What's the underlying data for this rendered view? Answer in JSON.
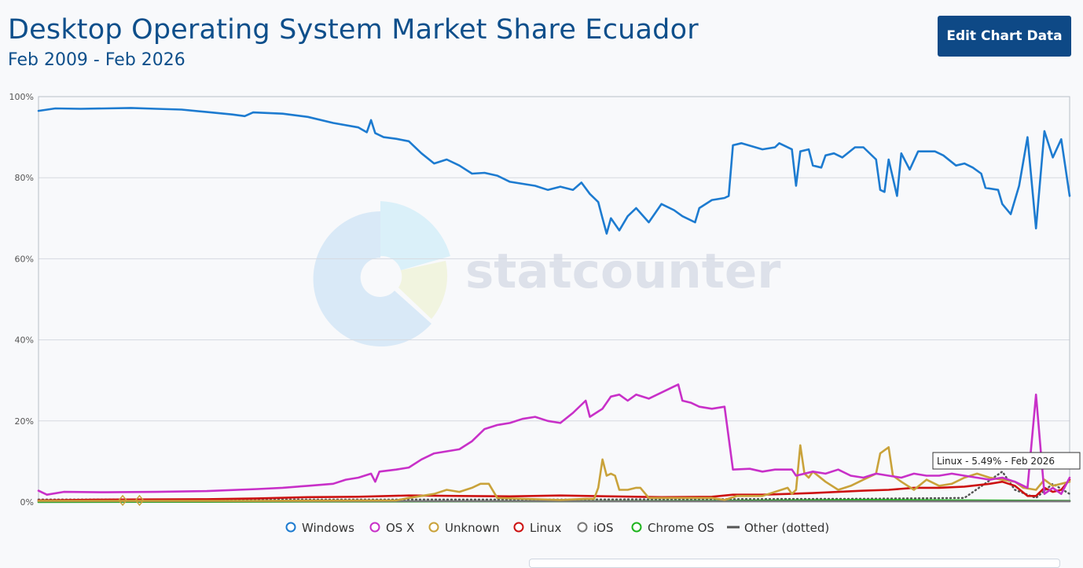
{
  "header": {
    "title": "Desktop Operating System Market Share Ecuador",
    "subtitle": "Feb 2009 - Feb 2026",
    "edit_button": "Edit Chart Data"
  },
  "watermark": {
    "text": "statcounter"
  },
  "tooltip": {
    "text": "Linux - 5.49% - Feb 2026"
  },
  "chart_data": {
    "type": "line",
    "title": "Desktop Operating System Market Share Ecuador",
    "subtitle": "Feb 2009 - Feb 2026",
    "xlabel": "",
    "ylabel": "",
    "x_start": "Feb 2009",
    "x_end": "Feb 2026",
    "ylim": [
      0,
      100
    ],
    "yticks": [
      "0%",
      "20%",
      "40%",
      "60%",
      "80%",
      "100%"
    ],
    "grid": true,
    "legend_position": "bottom",
    "series": [
      {
        "name": "Windows",
        "color": "#1d7bd0",
        "style": "solid",
        "points": [
          [
            "2009-02",
            96.5
          ],
          [
            "2009-06",
            97.1
          ],
          [
            "2009-12",
            97.0
          ],
          [
            "2010-06",
            97.1
          ],
          [
            "2010-12",
            97.2
          ],
          [
            "2011-06",
            97.0
          ],
          [
            "2011-12",
            96.8
          ],
          [
            "2012-06",
            96.2
          ],
          [
            "2012-12",
            95.6
          ],
          [
            "2013-03",
            95.2
          ],
          [
            "2013-05",
            96.1
          ],
          [
            "2013-12",
            95.8
          ],
          [
            "2014-06",
            95.0
          ],
          [
            "2014-12",
            93.5
          ],
          [
            "2015-06",
            92.4
          ],
          [
            "2015-08",
            91.2
          ],
          [
            "2015-09",
            94.2
          ],
          [
            "2015-10",
            91.0
          ],
          [
            "2015-12",
            90.0
          ],
          [
            "2016-03",
            89.6
          ],
          [
            "2016-06",
            89.0
          ],
          [
            "2016-09",
            86.0
          ],
          [
            "2016-12",
            83.5
          ],
          [
            "2017-03",
            84.5
          ],
          [
            "2017-06",
            83.0
          ],
          [
            "2017-09",
            81.0
          ],
          [
            "2017-12",
            81.2
          ],
          [
            "2018-03",
            80.5
          ],
          [
            "2018-06",
            79.0
          ],
          [
            "2018-12",
            78.0
          ],
          [
            "2019-03",
            77.0
          ],
          [
            "2019-06",
            77.8
          ],
          [
            "2019-09",
            77.0
          ],
          [
            "2019-11",
            78.8
          ],
          [
            "2020-01",
            76.0
          ],
          [
            "2020-03",
            74.0
          ],
          [
            "2020-04",
            70.0
          ],
          [
            "2020-05",
            66.2
          ],
          [
            "2020-06",
            70.0
          ],
          [
            "2020-08",
            67.0
          ],
          [
            "2020-10",
            70.5
          ],
          [
            "2020-12",
            72.5
          ],
          [
            "2021-03",
            69.0
          ],
          [
            "2021-06",
            73.5
          ],
          [
            "2021-09",
            72.0
          ],
          [
            "2021-11",
            70.5
          ],
          [
            "2022-02",
            69.0
          ],
          [
            "2022-03",
            72.5
          ],
          [
            "2022-06",
            74.5
          ],
          [
            "2022-09",
            75.0
          ],
          [
            "2022-10",
            75.5
          ],
          [
            "2022-11",
            88.0
          ],
          [
            "2023-01",
            88.5
          ],
          [
            "2023-06",
            87.0
          ],
          [
            "2023-09",
            87.5
          ],
          [
            "2023-10",
            88.5
          ],
          [
            "2024-01",
            87.0
          ],
          [
            "2024-02",
            78.0
          ],
          [
            "2024-03",
            86.5
          ],
          [
            "2024-05",
            87.0
          ],
          [
            "2024-06",
            83.0
          ],
          [
            "2024-08",
            82.5
          ],
          [
            "2024-09",
            85.5
          ],
          [
            "2024-11",
            86.0
          ],
          [
            "2025-01",
            85.0
          ],
          [
            "2025-04",
            87.5
          ],
          [
            "2025-06",
            87.5
          ],
          [
            "2025-09",
            84.5
          ],
          [
            "2025-10",
            77.0
          ],
          [
            "2025-11",
            76.5
          ],
          [
            "2025-12",
            84.5
          ],
          [
            "2026-02",
            75.5
          ],
          [
            "2026-03",
            86.0
          ],
          [
            "2026-05",
            82.0
          ],
          [
            "2026-07",
            86.5
          ],
          [
            "2026-09",
            86.5
          ],
          [
            "2026-11",
            86.5
          ],
          [
            "2027-01",
            85.5
          ],
          [
            "2027-04",
            83.0
          ],
          [
            "2027-06",
            83.5
          ],
          [
            "2027-08",
            82.5
          ],
          [
            "2027-10",
            81.0
          ],
          [
            "2027-11",
            77.5
          ],
          [
            "2028-02",
            77.0
          ],
          [
            "2028-03",
            73.5
          ],
          [
            "2028-05",
            71.0
          ],
          [
            "2028-07",
            78.0
          ],
          [
            "2028-09",
            90.0
          ],
          [
            "2028-11",
            67.5
          ],
          [
            "2029-01",
            91.5
          ],
          [
            "2029-03",
            85.0
          ],
          [
            "2029-05",
            89.5
          ],
          [
            "2029-07",
            75.5
          ]
        ]
      },
      {
        "name": "OS X",
        "color": "#c830c8",
        "style": "solid",
        "points": [
          [
            "2009-02",
            2.8
          ],
          [
            "2009-04",
            1.8
          ],
          [
            "2009-08",
            2.5
          ],
          [
            "2010-06",
            2.4
          ],
          [
            "2011-06",
            2.5
          ],
          [
            "2012-06",
            2.7
          ],
          [
            "2013-06",
            3.2
          ],
          [
            "2013-12",
            3.5
          ],
          [
            "2014-06",
            4.0
          ],
          [
            "2014-12",
            4.5
          ],
          [
            "2015-03",
            5.5
          ],
          [
            "2015-06",
            6.0
          ],
          [
            "2015-09",
            7.0
          ],
          [
            "2015-10",
            5.0
          ],
          [
            "2015-11",
            7.5
          ],
          [
            "2016-03",
            8.0
          ],
          [
            "2016-06",
            8.5
          ],
          [
            "2016-09",
            10.5
          ],
          [
            "2016-12",
            12.0
          ],
          [
            "2017-03",
            12.5
          ],
          [
            "2017-06",
            13.0
          ],
          [
            "2017-09",
            15.0
          ],
          [
            "2017-12",
            18.0
          ],
          [
            "2018-03",
            19.0
          ],
          [
            "2018-06",
            19.5
          ],
          [
            "2018-09",
            20.5
          ],
          [
            "2018-12",
            21.0
          ],
          [
            "2019-03",
            20.0
          ],
          [
            "2019-06",
            19.5
          ],
          [
            "2019-09",
            22.0
          ],
          [
            "2019-12",
            25.0
          ],
          [
            "2020-01",
            21.0
          ],
          [
            "2020-04",
            23.0
          ],
          [
            "2020-06",
            26.0
          ],
          [
            "2020-08",
            26.5
          ],
          [
            "2020-10",
            25.0
          ],
          [
            "2020-12",
            26.5
          ],
          [
            "2021-03",
            25.5
          ],
          [
            "2021-06",
            27.0
          ],
          [
            "2021-09",
            28.5
          ],
          [
            "2021-10",
            29.0
          ],
          [
            "2021-11",
            25.0
          ],
          [
            "2022-01",
            24.5
          ],
          [
            "2022-03",
            23.5
          ],
          [
            "2022-06",
            23.0
          ],
          [
            "2022-09",
            23.5
          ],
          [
            "2022-11",
            8.0
          ],
          [
            "2023-03",
            8.2
          ],
          [
            "2023-06",
            7.5
          ],
          [
            "2023-09",
            8.0
          ],
          [
            "2024-01",
            8.0
          ],
          [
            "2024-02",
            6.5
          ],
          [
            "2024-06",
            7.5
          ],
          [
            "2024-09",
            7.0
          ],
          [
            "2024-12",
            8.0
          ],
          [
            "2025-03",
            6.5
          ],
          [
            "2025-06",
            6.0
          ],
          [
            "2025-09",
            7.0
          ],
          [
            "2025-12",
            6.5
          ],
          [
            "2026-03",
            6.0
          ],
          [
            "2026-06",
            7.0
          ],
          [
            "2026-09",
            6.5
          ],
          [
            "2026-12",
            6.5
          ],
          [
            "2027-03",
            7.0
          ],
          [
            "2027-06",
            6.5
          ],
          [
            "2027-09",
            6.0
          ],
          [
            "2027-12",
            5.5
          ],
          [
            "2028-03",
            6.0
          ],
          [
            "2028-06",
            5.0
          ],
          [
            "2028-09",
            3.5
          ],
          [
            "2028-11",
            26.5
          ],
          [
            "2029-01",
            2.0
          ],
          [
            "2029-03",
            3.5
          ],
          [
            "2029-05",
            2.0
          ],
          [
            "2029-07",
            6.0
          ]
        ]
      },
      {
        "name": "Unknown",
        "color": "#c9a23a",
        "style": "solid",
        "points": [
          [
            "2009-02",
            0.3
          ],
          [
            "2013-06",
            0.3
          ],
          [
            "2016-03",
            0.4
          ],
          [
            "2016-06",
            1.0
          ],
          [
            "2016-12",
            2.0
          ],
          [
            "2017-03",
            3.0
          ],
          [
            "2017-06",
            2.5
          ],
          [
            "2017-09",
            3.5
          ],
          [
            "2017-11",
            4.5
          ],
          [
            "2018-01",
            4.5
          ],
          [
            "2018-03",
            1.0
          ],
          [
            "2019-06",
            0.5
          ],
          [
            "2019-12",
            0.8
          ],
          [
            "2020-02",
            0.8
          ],
          [
            "2020-03",
            3.5
          ],
          [
            "2020-04",
            10.5
          ],
          [
            "2020-05",
            6.5
          ],
          [
            "2020-06",
            7.0
          ],
          [
            "2020-07",
            6.5
          ],
          [
            "2020-08",
            3.0
          ],
          [
            "2020-10",
            3.0
          ],
          [
            "2020-12",
            3.5
          ],
          [
            "2021-01",
            3.5
          ],
          [
            "2021-03",
            1.0
          ],
          [
            "2022-06",
            1.0
          ],
          [
            "2022-09",
            0.5
          ],
          [
            "2022-12",
            1.5
          ],
          [
            "2023-06",
            1.5
          ],
          [
            "2023-12",
            3.5
          ],
          [
            "2024-01",
            2.0
          ],
          [
            "2024-02",
            3.0
          ],
          [
            "2024-03",
            14.0
          ],
          [
            "2024-04",
            7.0
          ],
          [
            "2024-05",
            6.0
          ],
          [
            "2024-06",
            7.5
          ],
          [
            "2024-09",
            5.0
          ],
          [
            "2024-12",
            3.0
          ],
          [
            "2025-03",
            4.0
          ],
          [
            "2025-06",
            5.5
          ],
          [
            "2025-09",
            7.0
          ],
          [
            "2025-10",
            12.0
          ],
          [
            "2025-12",
            13.5
          ],
          [
            "2026-01",
            6.5
          ],
          [
            "2026-03",
            5.0
          ],
          [
            "2026-06",
            3.0
          ],
          [
            "2026-09",
            5.5
          ],
          [
            "2026-12",
            4.0
          ],
          [
            "2027-03",
            4.5
          ],
          [
            "2027-06",
            6.0
          ],
          [
            "2027-09",
            7.0
          ],
          [
            "2027-12",
            6.0
          ],
          [
            "2028-03",
            5.5
          ],
          [
            "2028-06",
            5.0
          ],
          [
            "2028-08",
            3.5
          ],
          [
            "2028-11",
            3.0
          ],
          [
            "2029-01",
            5.5
          ],
          [
            "2029-03",
            4.0
          ],
          [
            "2029-05",
            4.5
          ],
          [
            "2029-07",
            5.0
          ]
        ]
      },
      {
        "name": "Linux",
        "color": "#cc1111",
        "style": "solid",
        "points": [
          [
            "2009-02",
            0.4
          ],
          [
            "2010-06",
            0.6
          ],
          [
            "2012-06",
            0.7
          ],
          [
            "2013-06",
            0.9
          ],
          [
            "2014-06",
            1.2
          ],
          [
            "2015-06",
            1.3
          ],
          [
            "2016-06",
            1.6
          ],
          [
            "2017-06",
            1.5
          ],
          [
            "2018-06",
            1.4
          ],
          [
            "2019-06",
            1.6
          ],
          [
            "2020-06",
            1.4
          ],
          [
            "2021-06",
            1.2
          ],
          [
            "2022-06",
            1.3
          ],
          [
            "2022-11",
            1.8
          ],
          [
            "2023-06",
            1.8
          ],
          [
            "2023-12",
            2.0
          ],
          [
            "2024-06",
            2.2
          ],
          [
            "2024-12",
            2.5
          ],
          [
            "2025-06",
            2.8
          ],
          [
            "2025-12",
            3.0
          ],
          [
            "2026-06",
            3.5
          ],
          [
            "2026-12",
            3.5
          ],
          [
            "2027-06",
            3.8
          ],
          [
            "2027-12",
            4.5
          ],
          [
            "2028-03",
            5.0
          ],
          [
            "2028-06",
            4.0
          ],
          [
            "2028-09",
            1.5
          ],
          [
            "2028-11",
            1.5
          ],
          [
            "2029-01",
            3.5
          ],
          [
            "2029-03",
            2.5
          ],
          [
            "2029-05",
            3.0
          ],
          [
            "2029-07",
            5.5
          ]
        ]
      },
      {
        "name": "iOS",
        "color": "#777777",
        "style": "solid",
        "points": [
          [
            "2009-02",
            0.2
          ],
          [
            "2029-07",
            0.2
          ]
        ]
      },
      {
        "name": "Chrome OS",
        "color": "#1eb41e",
        "style": "solid",
        "points": [
          [
            "2009-02",
            0.0
          ],
          [
            "2019-06",
            0.2
          ],
          [
            "2022-06",
            0.3
          ],
          [
            "2025-06",
            0.5
          ],
          [
            "2029-07",
            0.3
          ]
        ]
      },
      {
        "name": "Other (dotted)",
        "color": "#555555",
        "style": "dotted",
        "points": [
          [
            "2009-02",
            0.6
          ],
          [
            "2013-06",
            0.6
          ],
          [
            "2019-06",
            0.6
          ],
          [
            "2025-06",
            0.8
          ],
          [
            "2027-06",
            1.0
          ],
          [
            "2028-03",
            7.5
          ],
          [
            "2028-06",
            3.0
          ],
          [
            "2028-11",
            1.0
          ],
          [
            "2029-03",
            4.5
          ],
          [
            "2029-07",
            2.0
          ]
        ]
      }
    ]
  }
}
